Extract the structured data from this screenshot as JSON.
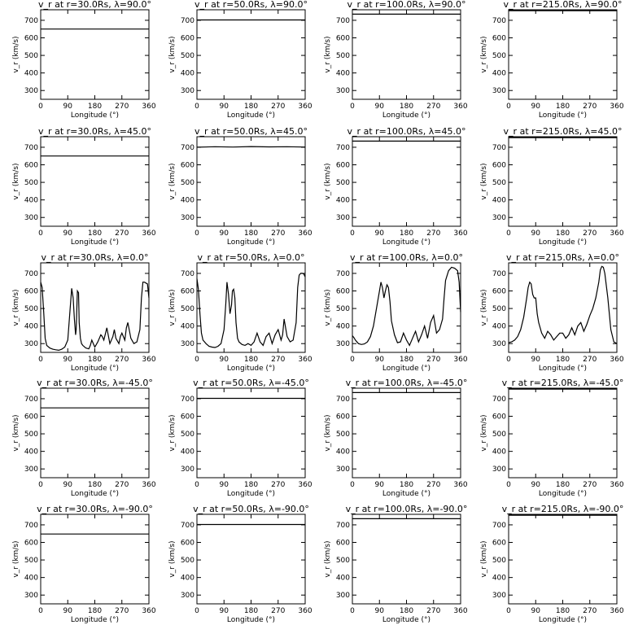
{
  "chart_data": [
    {
      "type": "line",
      "title": "v_r at r=30.0Rs, λ=90.0°",
      "xlabel": "Longitude (°)",
      "ylabel": "v_r (km/s)",
      "xlim": [
        0,
        360
      ],
      "ylim": [
        250,
        760
      ],
      "xticks": [
        0,
        90,
        180,
        270,
        360
      ],
      "yticks": [
        300,
        400,
        500,
        600,
        700
      ],
      "x": [
        0,
        360
      ],
      "y": [
        650,
        650
      ]
    },
    {
      "type": "line",
      "title": "v_r at r=50.0Rs, λ=90.0°",
      "xlabel": "Longitude (°)",
      "ylabel": "v_r (km/s)",
      "xlim": [
        0,
        360
      ],
      "ylim": [
        250,
        760
      ],
      "xticks": [
        0,
        90,
        180,
        270,
        360
      ],
      "yticks": [
        300,
        400,
        500,
        600,
        700
      ],
      "x": [
        0,
        360
      ],
      "y": [
        702,
        702
      ]
    },
    {
      "type": "line",
      "title": "v_r at r=100.0Rs, λ=90.0°",
      "xlabel": "Longitude (°)",
      "ylabel": "v_r (km/s)",
      "xlim": [
        0,
        360
      ],
      "ylim": [
        250,
        760
      ],
      "xticks": [
        0,
        90,
        180,
        270,
        360
      ],
      "yticks": [
        300,
        400,
        500,
        600,
        700
      ],
      "x": [
        0,
        360
      ],
      "y": [
        735,
        735
      ]
    },
    {
      "type": "line",
      "title": "v_r at r=215.0Rs, λ=90.0°",
      "xlabel": "Longitude (°)",
      "ylabel": "v_r (km/s)",
      "xlim": [
        0,
        360
      ],
      "ylim": [
        250,
        760
      ],
      "xticks": [
        0,
        90,
        180,
        270,
        360
      ],
      "yticks": [
        300,
        400,
        500,
        600,
        700
      ],
      "x": [
        0,
        360
      ],
      "y": [
        755,
        755
      ]
    },
    {
      "type": "line",
      "title": "v_r at r=30.0Rs, λ=45.0°",
      "xlabel": "Longitude (°)",
      "ylabel": "v_r (km/s)",
      "xlim": [
        0,
        360
      ],
      "ylim": [
        250,
        760
      ],
      "xticks": [
        0,
        90,
        180,
        270,
        360
      ],
      "yticks": [
        300,
        400,
        500,
        600,
        700
      ],
      "x": [
        0,
        360
      ],
      "y": [
        650,
        650
      ]
    },
    {
      "type": "line",
      "title": "v_r at r=50.0Rs, λ=45.0°",
      "xlabel": "Longitude (°)",
      "ylabel": "v_r (km/s)",
      "xlim": [
        0,
        360
      ],
      "ylim": [
        250,
        760
      ],
      "xticks": [
        0,
        90,
        180,
        270,
        360
      ],
      "yticks": [
        300,
        400,
        500,
        600,
        700
      ],
      "x": [
        0,
        60,
        120,
        180,
        240,
        300,
        360
      ],
      "y": [
        700,
        703,
        701,
        704,
        702,
        703,
        701
      ]
    },
    {
      "type": "line",
      "title": "v_r at r=100.0Rs, λ=45.0°",
      "xlabel": "Longitude (°)",
      "ylabel": "v_r (km/s)",
      "xlim": [
        0,
        360
      ],
      "ylim": [
        250,
        760
      ],
      "xticks": [
        0,
        90,
        180,
        270,
        360
      ],
      "yticks": [
        300,
        400,
        500,
        600,
        700
      ],
      "x": [
        0,
        360
      ],
      "y": [
        735,
        735
      ]
    },
    {
      "type": "line",
      "title": "v_r at r=215.0Rs, λ=45.0°",
      "xlabel": "Longitude (°)",
      "ylabel": "v_r (km/s)",
      "xlim": [
        0,
        360
      ],
      "ylim": [
        250,
        760
      ],
      "xticks": [
        0,
        90,
        180,
        270,
        360
      ],
      "yticks": [
        300,
        400,
        500,
        600,
        700
      ],
      "x": [
        0,
        360
      ],
      "y": [
        755,
        755
      ]
    },
    {
      "type": "line",
      "title": "v_r at r=30.0Rs, λ=0.0°",
      "xlabel": "Longitude (°)",
      "ylabel": "v_r (km/s)",
      "xlim": [
        0,
        360
      ],
      "ylim": [
        250,
        760
      ],
      "xticks": [
        0,
        90,
        180,
        270,
        360
      ],
      "yticks": [
        300,
        400,
        500,
        600,
        700
      ],
      "x": [
        0,
        5,
        10,
        15,
        20,
        30,
        40,
        50,
        60,
        70,
        80,
        90,
        98,
        103,
        108,
        112,
        116,
        118,
        122,
        126,
        128,
        132,
        136,
        140,
        150,
        160,
        165,
        170,
        180,
        190,
        200,
        205,
        210,
        220,
        230,
        240,
        245,
        250,
        260,
        265,
        270,
        275,
        280,
        285,
        290,
        300,
        310,
        320,
        330,
        335,
        340,
        345,
        350,
        355,
        360
      ],
      "y": [
        650,
        620,
        480,
        330,
        290,
        275,
        268,
        265,
        262,
        268,
        280,
        320,
        500,
        615,
        560,
        440,
        350,
        380,
        600,
        590,
        420,
        330,
        300,
        290,
        275,
        270,
        290,
        320,
        280,
        310,
        350,
        340,
        320,
        390,
        300,
        340,
        380,
        330,
        300,
        340,
        360,
        340,
        320,
        390,
        420,
        330,
        300,
        310,
        380,
        560,
        650,
        650,
        645,
        640,
        560
      ]
    },
    {
      "type": "line",
      "title": "v_r at r=50.0Rs, λ=0.0°",
      "xlabel": "Longitude (°)",
      "ylabel": "v_r (km/s)",
      "xlim": [
        0,
        360
      ],
      "ylim": [
        250,
        760
      ],
      "xticks": [
        0,
        90,
        180,
        270,
        360
      ],
      "yticks": [
        300,
        400,
        500,
        600,
        700
      ],
      "x": [
        0,
        5,
        10,
        15,
        20,
        30,
        40,
        50,
        60,
        70,
        80,
        90,
        96,
        100,
        105,
        110,
        115,
        118,
        122,
        126,
        130,
        135,
        140,
        150,
        160,
        170,
        180,
        190,
        200,
        210,
        220,
        230,
        240,
        250,
        260,
        270,
        280,
        285,
        290,
        300,
        310,
        320,
        330,
        335,
        340,
        345,
        350,
        355,
        360
      ],
      "y": [
        670,
        610,
        470,
        360,
        320,
        300,
        285,
        280,
        278,
        285,
        300,
        380,
        530,
        650,
        580,
        470,
        520,
        600,
        610,
        560,
        420,
        330,
        310,
        295,
        290,
        300,
        290,
        310,
        360,
        310,
        290,
        340,
        360,
        300,
        350,
        380,
        320,
        350,
        440,
        340,
        310,
        320,
        420,
        620,
        690,
        700,
        700,
        698,
        680
      ]
    },
    {
      "type": "line",
      "title": "v_r at r=100.0Rs, λ=0.0°",
      "xlabel": "Longitude (°)",
      "ylabel": "v_r (km/s)",
      "xlim": [
        0,
        360
      ],
      "ylim": [
        250,
        760
      ],
      "xticks": [
        0,
        90,
        180,
        270,
        360
      ],
      "yticks": [
        300,
        400,
        500,
        600,
        700
      ],
      "x": [
        0,
        5,
        10,
        20,
        30,
        40,
        50,
        60,
        70,
        80,
        90,
        95,
        100,
        105,
        110,
        115,
        120,
        125,
        130,
        140,
        150,
        160,
        170,
        180,
        190,
        200,
        210,
        220,
        230,
        240,
        250,
        260,
        270,
        280,
        290,
        300,
        305,
        310,
        320,
        330,
        340,
        350,
        355,
        360
      ],
      "y": [
        345,
        335,
        320,
        300,
        295,
        298,
        310,
        340,
        400,
        500,
        600,
        650,
        620,
        560,
        600,
        635,
        620,
        540,
        430,
        350,
        305,
        310,
        360,
        320,
        290,
        330,
        370,
        310,
        350,
        400,
        330,
        420,
        460,
        360,
        380,
        440,
        560,
        660,
        715,
        735,
        730,
        715,
        650,
        480
      ]
    },
    {
      "type": "line",
      "title": "v_r at r=215.0Rs, λ=0.0°",
      "xlabel": "Longitude (°)",
      "ylabel": "v_r (km/s)",
      "xlim": [
        0,
        360
      ],
      "ylim": [
        250,
        760
      ],
      "xticks": [
        0,
        90,
        180,
        270,
        360
      ],
      "yticks": [
        300,
        400,
        500,
        600,
        700
      ],
      "x": [
        0,
        10,
        20,
        30,
        40,
        50,
        60,
        65,
        70,
        75,
        80,
        85,
        90,
        95,
        100,
        110,
        120,
        130,
        140,
        150,
        160,
        170,
        180,
        190,
        200,
        210,
        220,
        230,
        240,
        250,
        260,
        270,
        280,
        290,
        300,
        305,
        310,
        315,
        320,
        330,
        340,
        350,
        360
      ],
      "y": [
        305,
        310,
        320,
        340,
        380,
        450,
        560,
        620,
        650,
        640,
        580,
        560,
        560,
        470,
        420,
        360,
        330,
        370,
        350,
        320,
        340,
        360,
        360,
        330,
        350,
        390,
        350,
        400,
        420,
        370,
        410,
        460,
        500,
        560,
        650,
        720,
        740,
        735,
        700,
        560,
        380,
        310,
        300
      ]
    },
    {
      "type": "line",
      "title": "v_r at r=30.0Rs, λ=-45.0°",
      "xlabel": "Longitude (°)",
      "ylabel": "v_r (km/s)",
      "xlim": [
        0,
        360
      ],
      "ylim": [
        250,
        760
      ],
      "xticks": [
        0,
        90,
        180,
        270,
        360
      ],
      "yticks": [
        300,
        400,
        500,
        600,
        700
      ],
      "x": [
        0,
        360
      ],
      "y": [
        648,
        648
      ]
    },
    {
      "type": "line",
      "title": "v_r at r=50.0Rs, λ=-45.0°",
      "xlabel": "Longitude (°)",
      "ylabel": "v_r (km/s)",
      "xlim": [
        0,
        360
      ],
      "ylim": [
        250,
        760
      ],
      "xticks": [
        0,
        90,
        180,
        270,
        360
      ],
      "yticks": [
        300,
        400,
        500,
        600,
        700
      ],
      "x": [
        0,
        360
      ],
      "y": [
        702,
        702
      ]
    },
    {
      "type": "line",
      "title": "v_r at r=100.0Rs, λ=-45.0°",
      "xlabel": "Longitude (°)",
      "ylabel": "v_r (km/s)",
      "xlim": [
        0,
        360
      ],
      "ylim": [
        250,
        760
      ],
      "xticks": [
        0,
        90,
        180,
        270,
        360
      ],
      "yticks": [
        300,
        400,
        500,
        600,
        700
      ],
      "x": [
        0,
        360
      ],
      "y": [
        735,
        735
      ]
    },
    {
      "type": "line",
      "title": "v_r at r=215.0Rs, λ=-45.0°",
      "xlabel": "Longitude (°)",
      "ylabel": "v_r (km/s)",
      "xlim": [
        0,
        360
      ],
      "ylim": [
        250,
        760
      ],
      "xticks": [
        0,
        90,
        180,
        270,
        360
      ],
      "yticks": [
        300,
        400,
        500,
        600,
        700
      ],
      "x": [
        0,
        360
      ],
      "y": [
        755,
        755
      ]
    },
    {
      "type": "line",
      "title": "v_r at r=30.0Rs, λ=-90.0°",
      "xlabel": "Longitude (°)",
      "ylabel": "v_r (km/s)",
      "xlim": [
        0,
        360
      ],
      "ylim": [
        250,
        760
      ],
      "xticks": [
        0,
        90,
        180,
        270,
        360
      ],
      "yticks": [
        300,
        400,
        500,
        600,
        700
      ],
      "x": [
        0,
        360
      ],
      "y": [
        648,
        648
      ]
    },
    {
      "type": "line",
      "title": "v_r at r=50.0Rs, λ=-90.0°",
      "xlabel": "Longitude (°)",
      "ylabel": "v_r (km/s)",
      "xlim": [
        0,
        360
      ],
      "ylim": [
        250,
        760
      ],
      "xticks": [
        0,
        90,
        180,
        270,
        360
      ],
      "yticks": [
        300,
        400,
        500,
        600,
        700
      ],
      "x": [
        0,
        360
      ],
      "y": [
        702,
        702
      ]
    },
    {
      "type": "line",
      "title": "v_r at r=100.0Rs, λ=-90.0°",
      "xlabel": "Longitude (°)",
      "ylabel": "v_r (km/s)",
      "xlim": [
        0,
        360
      ],
      "ylim": [
        250,
        760
      ],
      "xticks": [
        0,
        90,
        180,
        270,
        360
      ],
      "yticks": [
        300,
        400,
        500,
        600,
        700
      ],
      "x": [
        0,
        360
      ],
      "y": [
        735,
        735
      ]
    },
    {
      "type": "line",
      "title": "v_r at r=215.0Rs, λ=-90.0°",
      "xlabel": "Longitude (°)",
      "ylabel": "v_r (km/s)",
      "xlim": [
        0,
        360
      ],
      "ylim": [
        250,
        760
      ],
      "xticks": [
        0,
        90,
        180,
        270,
        360
      ],
      "yticks": [
        300,
        400,
        500,
        600,
        700
      ],
      "x": [
        0,
        360
      ],
      "y": [
        755,
        755
      ]
    }
  ]
}
